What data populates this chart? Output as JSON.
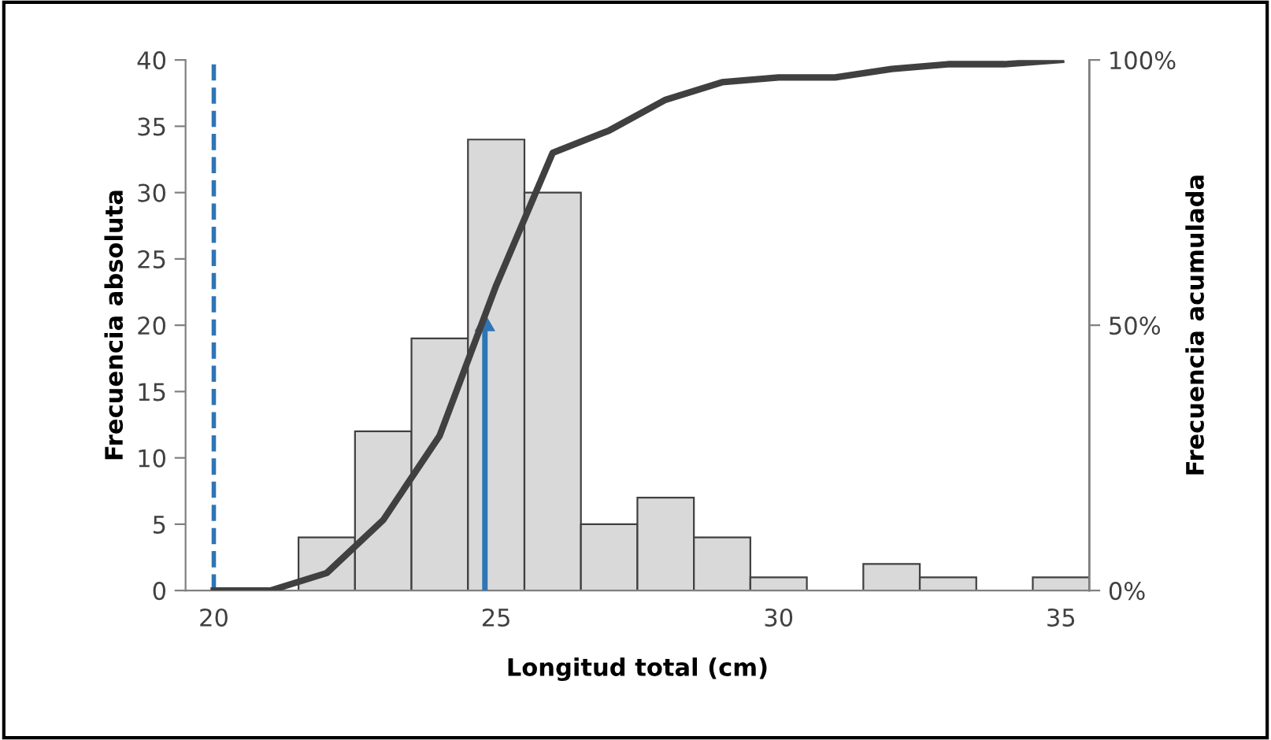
{
  "chart_data": {
    "type": "histogram",
    "xlabel": "Longitud total (cm)",
    "ylabel": "Frecuencia absoluta",
    "y2label": "Frecuencia acumulada",
    "bins": [
      19.5,
      20.5,
      21.5,
      22.5,
      23.5,
      24.5,
      25.5,
      26.5,
      27.5,
      28.5,
      29.5,
      30.5,
      31.5,
      32.5,
      33.5,
      34.5,
      35.5
    ],
    "values": [
      0,
      0,
      4,
      12,
      19,
      34,
      30,
      5,
      7,
      4,
      1,
      0,
      2,
      1,
      0,
      1
    ],
    "color": "#d9d9d9",
    "series": [
      {
        "type": "line",
        "color": "#2e75b6",
        "x": [
          24.8,
          24.8
        ],
        "values": [
          0,
          20
        ]
      },
      {
        "type": "line",
        "axis": "y2",
        "color": "#404040",
        "x": [
          20,
          21,
          22,
          23,
          24,
          25,
          26,
          27,
          28,
          29,
          30,
          31,
          32,
          33,
          34,
          35
        ],
        "values": [
          0,
          0,
          3.3,
          13.3,
          29.2,
          57.5,
          82.5,
          86.7,
          92.5,
          95.8,
          96.7,
          96.7,
          98.3,
          99.2,
          99.2,
          100
        ]
      }
    ],
    "xlim": [
      19.5,
      35.5
    ],
    "xticks": [
      20,
      25,
      30,
      35
    ],
    "ylim": [
      0,
      40
    ],
    "yticks": [
      0,
      5,
      10,
      15,
      20,
      25,
      30,
      35,
      40
    ],
    "y2lim": [
      0,
      100
    ],
    "y2ticks": [
      {
        "value": 0,
        "label": "0%"
      },
      {
        "value": 50,
        "label": "50%"
      },
      {
        "value": 100,
        "label": "100%"
      }
    ],
    "ref_lines": [
      {
        "axis": "x",
        "value": 20,
        "label": null,
        "color": "#2e75b6",
        "line_style": "dashed"
      }
    ],
    "grid": false
  }
}
